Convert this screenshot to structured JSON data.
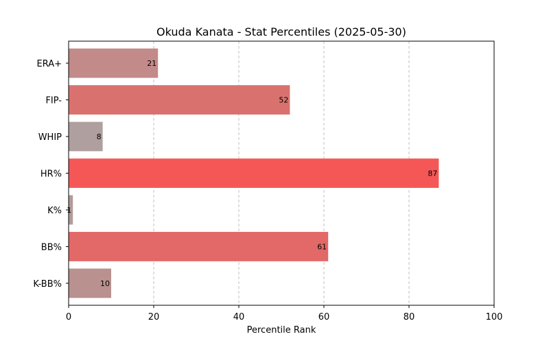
{
  "chart_data": {
    "type": "bar",
    "orientation": "horizontal",
    "title": "Okuda Kanata - Stat Percentiles (2025-05-30)",
    "xlabel": "Percentile Rank",
    "ylabel": "",
    "xlim": [
      0,
      100
    ],
    "xticks": [
      0,
      20,
      40,
      60,
      80,
      100
    ],
    "grid": "vertical-dashed",
    "categories": [
      "ERA+",
      "FIP-",
      "WHIP",
      "HR%",
      "K%",
      "BB%",
      "K-BB%"
    ],
    "values": [
      21,
      52,
      8,
      87,
      1,
      61,
      10
    ],
    "colors": [
      "#c28a89",
      "#d9726f",
      "#b09f9f",
      "#f55757",
      "#b49a9a",
      "#e36868",
      "#b9918f"
    ]
  }
}
